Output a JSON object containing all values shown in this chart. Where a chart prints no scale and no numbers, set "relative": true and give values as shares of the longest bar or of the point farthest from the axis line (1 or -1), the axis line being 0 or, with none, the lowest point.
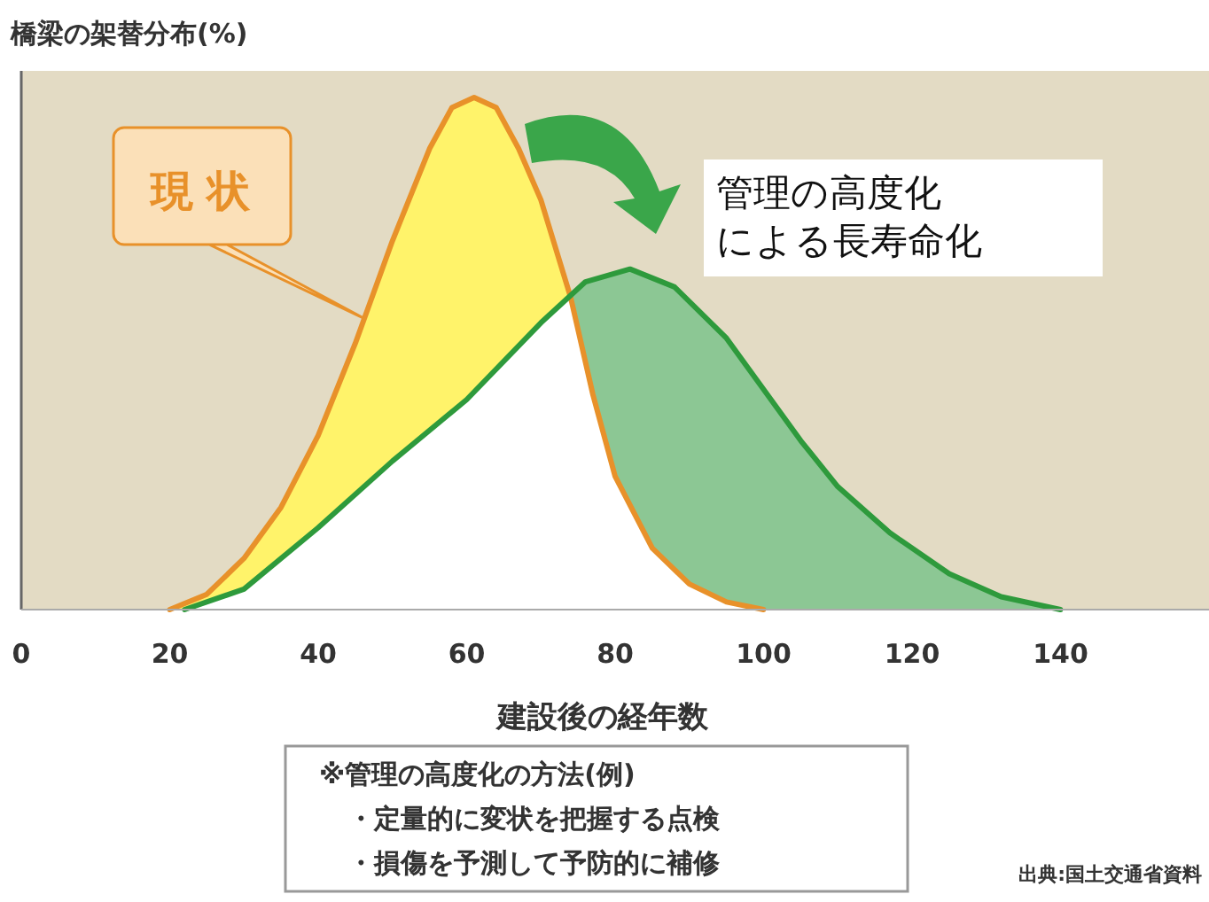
{
  "chart_data": {
    "type": "area",
    "relative": true,
    "ylabel": "橋梁の架替分布(%)",
    "xlabel": "建設後の経年数",
    "xlim": [
      0,
      160
    ],
    "xticks": [
      0,
      20,
      40,
      60,
      80,
      100,
      120,
      140
    ],
    "grid": false,
    "series": [
      {
        "name": "現 状",
        "color": "#e8912a",
        "x": [
          20,
          25,
          30,
          35,
          40,
          45,
          50,
          55,
          58,
          61,
          64,
          67,
          70,
          74,
          77,
          80,
          85,
          90,
          95,
          100
        ],
        "values": [
          0,
          0.03,
          0.1,
          0.2,
          0.34,
          0.52,
          0.72,
          0.9,
          0.98,
          1,
          0.98,
          0.9,
          0.8,
          0.61,
          0.42,
          0.26,
          0.12,
          0.05,
          0.015,
          0
        ]
      },
      {
        "name": "管理の高度化による長寿命化",
        "color": "#2e9a3c",
        "x": [
          22,
          30,
          40,
          50,
          60,
          70,
          76,
          82,
          88,
          95,
          100,
          105,
          110,
          117,
          125,
          132,
          140
        ],
        "values": [
          0,
          0.04,
          0.16,
          0.29,
          0.41,
          0.56,
          0.64,
          0.665,
          0.63,
          0.53,
          0.43,
          0.33,
          0.24,
          0.15,
          0.07,
          0.025,
          0
        ]
      }
    ],
    "annotations": [
      "※管理の高度化の方法(例)",
      "・定量的に変状を把握する点検",
      "・損傷を予測して予防的に補修",
      "出典:国土交通省資料"
    ]
  }
}
